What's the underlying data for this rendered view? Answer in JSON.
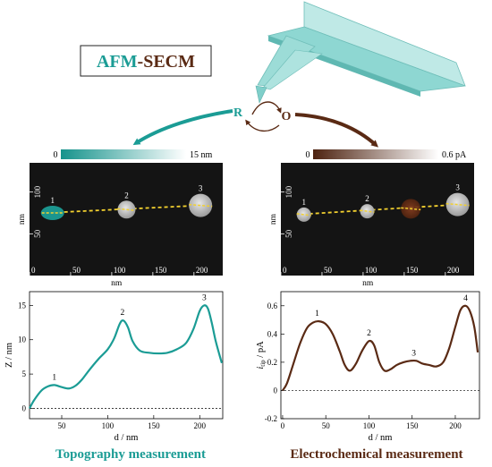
{
  "header": {
    "title_part1": "AFM",
    "title_sep": "-",
    "title_part2": "SECM",
    "reduced_label": "R",
    "oxidized_label": "O"
  },
  "colors": {
    "teal": "#1b9c95",
    "brown": "#5a2a14",
    "cantilever": "#7fd3cf",
    "dash": "#f2d02f"
  },
  "topo_colorbar": {
    "min_label": "0",
    "max_label": "15 nm"
  },
  "echem_colorbar": {
    "min_label": "0",
    "max_label": "0.6 pA"
  },
  "topo_image": {
    "x_title": "nm",
    "y_title": "nm",
    "x_ticks": [
      "0",
      "50",
      "100",
      "150",
      "200"
    ],
    "y_ticks": [
      "50",
      "100"
    ],
    "spots": [
      {
        "label": "1",
        "x": 28,
        "y": 75,
        "style": "teal-ellipse"
      },
      {
        "label": "2",
        "x": 118,
        "y": 79,
        "style": "grey"
      },
      {
        "label": "3",
        "x": 208,
        "y": 84,
        "style": "grey-large"
      }
    ]
  },
  "echem_image": {
    "x_title": "nm",
    "y_title": "nm",
    "x_ticks": [
      "0",
      "50",
      "100",
      "150",
      "200"
    ],
    "y_ticks": [
      "50",
      "100"
    ],
    "spots": [
      {
        "label": "1",
        "x": 28,
        "y": 73,
        "style": "grey-small"
      },
      {
        "label": "2",
        "x": 105,
        "y": 77,
        "style": "grey-small"
      },
      {
        "label": "",
        "x": 158,
        "y": 80,
        "style": "brown"
      },
      {
        "label": "3",
        "x": 215,
        "y": 85,
        "style": "grey-large"
      }
    ]
  },
  "chart_data": [
    {
      "type": "line",
      "title": "",
      "xlabel": "d / nm",
      "ylabel": "Z / nm",
      "xlim": [
        15,
        225
      ],
      "ylim": [
        -1.5,
        17
      ],
      "x_ticks": [
        50,
        100,
        150,
        200
      ],
      "y_ticks": [
        0,
        5,
        10,
        15
      ],
      "series": [
        {
          "x": [
            15,
            20,
            28,
            35,
            42,
            50,
            58,
            65,
            72,
            80,
            90,
            100,
            107,
            113,
            117,
            122,
            127,
            135,
            145,
            155,
            165,
            175,
            185,
            193,
            200,
            205,
            209,
            213,
            217,
            221,
            224
          ],
          "values": [
            0,
            1.2,
            2.6,
            3.2,
            3.4,
            3.1,
            2.9,
            3.3,
            4.2,
            5.6,
            7.2,
            8.6,
            10.2,
            12.3,
            12.8,
            11.8,
            9.8,
            8.4,
            8.1,
            8.0,
            8.1,
            8.6,
            9.5,
            11.5,
            14.2,
            15.0,
            14.5,
            12.5,
            10.0,
            8.0,
            6.6
          ]
        }
      ],
      "peak_labels": [
        {
          "label": "1",
          "x": 42,
          "y": 3.4
        },
        {
          "label": "2",
          "x": 116,
          "y": 12.8
        },
        {
          "label": "3",
          "x": 205,
          "y": 15.0
        }
      ],
      "baseline": 0,
      "footer": "Topography measurement"
    },
    {
      "type": "line",
      "title": "",
      "xlabel": "d / nm",
      "ylabel_main": "i",
      "ylabel_sub": "tip",
      "ylabel_unit": " / pA",
      "xlim": [
        -2,
        228
      ],
      "ylim": [
        -0.2,
        0.7
      ],
      "x_ticks": [
        0,
        50,
        100,
        150,
        200
      ],
      "y_ticks": [
        -0.2,
        0,
        0.2,
        0.4,
        0.6
      ],
      "series": [
        {
          "x": [
            0,
            5,
            12,
            20,
            28,
            35,
            42,
            50,
            58,
            66,
            72,
            78,
            85,
            92,
            100,
            106,
            112,
            118,
            125,
            132,
            140,
            148,
            155,
            162,
            170,
            178,
            186,
            193,
            200,
            206,
            212,
            217,
            222,
            226
          ],
          "values": [
            0,
            0.05,
            0.18,
            0.33,
            0.44,
            0.48,
            0.49,
            0.47,
            0.4,
            0.28,
            0.18,
            0.14,
            0.19,
            0.28,
            0.35,
            0.32,
            0.2,
            0.14,
            0.15,
            0.18,
            0.2,
            0.21,
            0.21,
            0.19,
            0.18,
            0.17,
            0.2,
            0.3,
            0.45,
            0.57,
            0.6,
            0.56,
            0.45,
            0.27
          ]
        }
      ],
      "peak_labels": [
        {
          "label": "1",
          "x": 40,
          "y": 0.49
        },
        {
          "label": "2",
          "x": 100,
          "y": 0.35
        },
        {
          "label": "3",
          "x": 152,
          "y": 0.21
        },
        {
          "label": "4",
          "x": 212,
          "y": 0.6
        }
      ],
      "baseline": 0,
      "footer": "Electrochemical measurement"
    }
  ]
}
